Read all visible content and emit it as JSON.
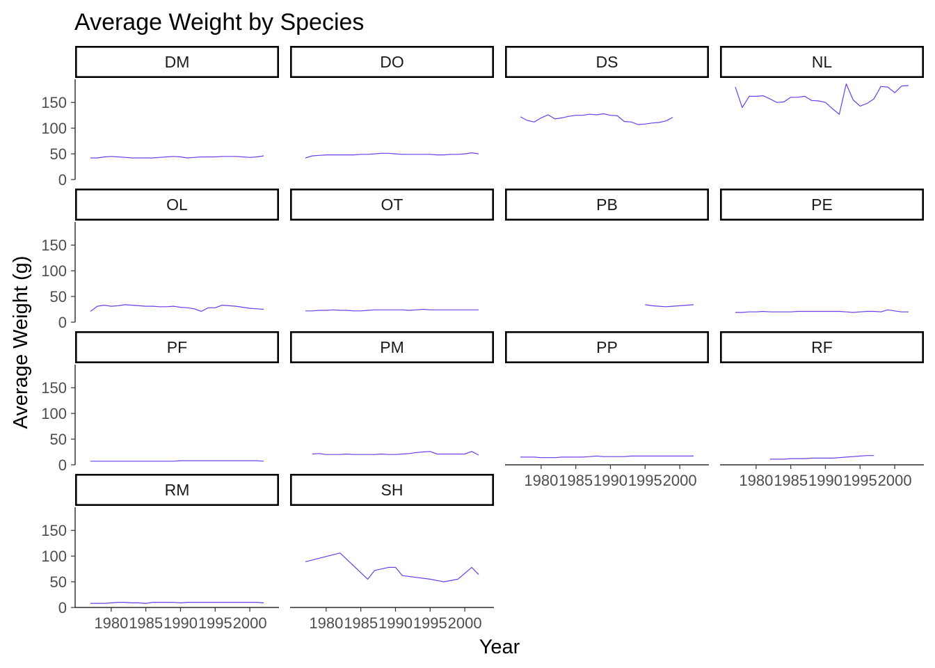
{
  "chart_data": {
    "type": "line",
    "title": "Average Weight by Species",
    "xlabel": "Year",
    "ylabel": "Average Weight (g)",
    "xlim": [
      1976,
      2003
    ],
    "ylim": [
      0,
      195
    ],
    "x_ticks": [
      1980,
      1985,
      1990,
      1995,
      2000
    ],
    "x_tick_labels": [
      "1980",
      "1985",
      "1990",
      "1995",
      "2000"
    ],
    "y_ticks": [
      0,
      50,
      100,
      150
    ],
    "y_tick_labels": [
      "0",
      "50",
      "100",
      "150"
    ],
    "line_color": "#6a3de8",
    "layout": "facet-wrap 4 columns",
    "grid": false,
    "legend": "none",
    "panels": [
      {
        "name": "DM",
        "x": [
          1977,
          1978,
          1979,
          1980,
          1981,
          1982,
          1983,
          1984,
          1985,
          1986,
          1987,
          1988,
          1989,
          1990,
          1991,
          1992,
          1993,
          1994,
          1995,
          1996,
          1997,
          1998,
          1999,
          2000,
          2001,
          2002
        ],
        "y": [
          42,
          42,
          44,
          45,
          44,
          43,
          42,
          42,
          42,
          42,
          43,
          44,
          45,
          44,
          42,
          43,
          44,
          44,
          44,
          45,
          45,
          45,
          44,
          43,
          44,
          46
        ]
      },
      {
        "name": "DO",
        "x": [
          1977,
          1978,
          1979,
          1980,
          1981,
          1982,
          1983,
          1984,
          1985,
          1986,
          1987,
          1988,
          1989,
          1990,
          1991,
          1992,
          1993,
          1994,
          1995,
          1996,
          1997,
          1998,
          1999,
          2000,
          2001,
          2002
        ],
        "y": [
          42,
          46,
          47,
          48,
          48,
          48,
          48,
          48,
          49,
          49,
          50,
          51,
          51,
          50,
          49,
          49,
          49,
          49,
          49,
          48,
          48,
          49,
          49,
          50,
          52,
          50
        ]
      },
      {
        "name": "DS",
        "x": [
          1977,
          1978,
          1979,
          1980,
          1981,
          1982,
          1983,
          1984,
          1985,
          1986,
          1987,
          1988,
          1989,
          1990,
          1991,
          1992,
          1993,
          1994,
          1995,
          1996,
          1997,
          1998,
          1999
        ],
        "y": [
          122,
          115,
          112,
          120,
          126,
          118,
          120,
          123,
          125,
          125,
          127,
          126,
          128,
          125,
          124,
          113,
          112,
          107,
          108,
          110,
          111,
          114,
          121
        ]
      },
      {
        "name": "NL",
        "x": [
          1977,
          1978,
          1979,
          1980,
          1981,
          1982,
          1983,
          1984,
          1985,
          1986,
          1987,
          1988,
          1989,
          1990,
          1991,
          1992,
          1993,
          1994,
          1995,
          1996,
          1997,
          1998,
          1999,
          2000,
          2001,
          2002
        ],
        "y": [
          180,
          140,
          162,
          162,
          163,
          157,
          150,
          151,
          160,
          160,
          162,
          154,
          153,
          150,
          138,
          127,
          186,
          155,
          143,
          148,
          157,
          181,
          180,
          169,
          182,
          183
        ]
      },
      {
        "name": "OL",
        "x": [
          1977,
          1978,
          1979,
          1980,
          1981,
          1982,
          1983,
          1984,
          1985,
          1986,
          1987,
          1988,
          1989,
          1990,
          1991,
          1992,
          1993,
          1994,
          1995,
          1996,
          1997,
          1998,
          1999,
          2000,
          2001,
          2002
        ],
        "y": [
          21,
          31,
          33,
          31,
          32,
          34,
          33,
          32,
          31,
          31,
          30,
          30,
          31,
          29,
          28,
          26,
          21,
          28,
          28,
          33,
          32,
          31,
          29,
          27,
          26,
          25
        ]
      },
      {
        "name": "OT",
        "x": [
          1977,
          1978,
          1979,
          1980,
          1981,
          1982,
          1983,
          1984,
          1985,
          1986,
          1987,
          1988,
          1989,
          1990,
          1991,
          1992,
          1993,
          1994,
          1995,
          1996,
          1997,
          1998,
          1999,
          2000,
          2001,
          2002
        ],
        "y": [
          22,
          22,
          23,
          23,
          24,
          23,
          23,
          22,
          22,
          23,
          24,
          24,
          24,
          24,
          24,
          23,
          24,
          25,
          24,
          24,
          24,
          24,
          24,
          24,
          24,
          24
        ]
      },
      {
        "name": "PB",
        "x": [
          1995,
          1996,
          1997,
          1998,
          1999,
          2000,
          2001,
          2002
        ],
        "y": [
          34,
          32,
          31,
          30,
          31,
          32,
          33,
          34
        ]
      },
      {
        "name": "PE",
        "x": [
          1977,
          1978,
          1979,
          1980,
          1981,
          1982,
          1983,
          1984,
          1985,
          1986,
          1987,
          1988,
          1989,
          1990,
          1991,
          1992,
          1993,
          1994,
          1995,
          1996,
          1997,
          1998,
          1999,
          2000,
          2001,
          2002
        ],
        "y": [
          19,
          19,
          20,
          20,
          21,
          20,
          20,
          20,
          20,
          21,
          21,
          21,
          21,
          21,
          21,
          21,
          20,
          19,
          20,
          21,
          21,
          20,
          24,
          22,
          20,
          20
        ]
      },
      {
        "name": "PF",
        "x": [
          1977,
          1978,
          1979,
          1980,
          1981,
          1982,
          1983,
          1984,
          1985,
          1986,
          1987,
          1988,
          1989,
          1990,
          1991,
          1992,
          1993,
          1994,
          1995,
          1996,
          1997,
          1998,
          1999,
          2000,
          2001,
          2002
        ],
        "y": [
          7,
          7,
          7,
          7,
          7,
          7,
          7,
          7,
          7,
          7,
          7,
          7,
          7,
          8,
          8,
          8,
          8,
          8,
          8,
          8,
          8,
          8,
          8,
          8,
          8,
          7
        ]
      },
      {
        "name": "PM",
        "x": [
          1978,
          1979,
          1980,
          1981,
          1982,
          1983,
          1984,
          1985,
          1986,
          1987,
          1988,
          1989,
          1990,
          1991,
          1992,
          1993,
          1994,
          1995,
          1996,
          1997,
          1998,
          1999,
          2000,
          2001,
          2002
        ],
        "y": [
          21,
          22,
          20,
          20,
          20,
          21,
          20,
          20,
          20,
          20,
          21,
          20,
          20,
          21,
          22,
          24,
          25,
          26,
          21,
          21,
          21,
          21,
          21,
          26,
          19
        ]
      },
      {
        "name": "PP",
        "x": [
          1977,
          1978,
          1979,
          1980,
          1981,
          1982,
          1983,
          1984,
          1985,
          1986,
          1987,
          1988,
          1989,
          1990,
          1991,
          1992,
          1993,
          1994,
          1995,
          1996,
          1997,
          1998,
          1999,
          2000,
          2001,
          2002
        ],
        "y": [
          15,
          15,
          15,
          14,
          14,
          14,
          15,
          15,
          15,
          15,
          16,
          17,
          16,
          16,
          16,
          16,
          17,
          17,
          17,
          17,
          17,
          17,
          17,
          17,
          17,
          17
        ]
      },
      {
        "name": "RF",
        "x": [
          1982,
          1983,
          1984,
          1985,
          1986,
          1987,
          1988,
          1989,
          1990,
          1991,
          1992,
          1993,
          1994,
          1995,
          1996,
          1997
        ],
        "y": [
          11,
          11,
          11,
          12,
          12,
          12,
          13,
          13,
          13,
          13,
          14,
          15,
          16,
          17,
          18,
          18
        ]
      },
      {
        "name": "RM",
        "x": [
          1977,
          1978,
          1979,
          1980,
          1981,
          1982,
          1983,
          1984,
          1985,
          1986,
          1987,
          1988,
          1989,
          1990,
          1991,
          1992,
          1993,
          1994,
          1995,
          1996,
          1997,
          1998,
          1999,
          2000,
          2001,
          2002
        ],
        "y": [
          8,
          8,
          8,
          9,
          10,
          10,
          9,
          9,
          8,
          10,
          10,
          10,
          10,
          9,
          10,
          10,
          10,
          10,
          10,
          10,
          10,
          10,
          10,
          10,
          10,
          9
        ]
      },
      {
        "name": "SH",
        "x": [
          1977,
          1982,
          1986,
          1987,
          1989,
          1990,
          1991,
          1995,
          1997,
          1999,
          2001,
          2002
        ],
        "y": [
          89,
          106,
          55,
          72,
          78,
          78,
          62,
          55,
          50,
          55,
          78,
          64
        ]
      }
    ]
  }
}
